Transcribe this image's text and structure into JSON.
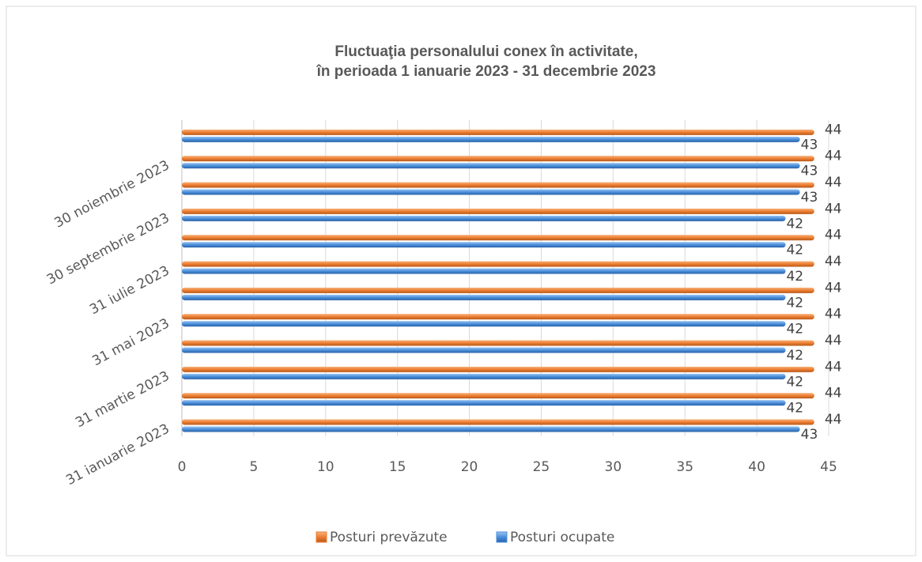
{
  "chart_data": {
    "type": "barh",
    "title": [
      "Fluctuaţia personalului conex în activitate,",
      "în perioada 1 ianuarie 2023 - 31 decembrie 2023"
    ],
    "categories": [
      "31 ianuarie 2023",
      null,
      "31 martie 2023",
      null,
      "31 mai 2023",
      null,
      "31 iulie 2023",
      null,
      "30 septembrie 2023",
      null,
      "30 noiembrie 2023",
      null
    ],
    "series": [
      {
        "name": "Posturi prevăzute",
        "color": "#ED7D31",
        "values": [
          44,
          44,
          44,
          44,
          44,
          44,
          44,
          44,
          44,
          44,
          44,
          44
        ]
      },
      {
        "name": "Posturi ocupate",
        "color": "#4A8FDB",
        "values": [
          43,
          42,
          42,
          42,
          42,
          42,
          42,
          42,
          42,
          43,
          43,
          43
        ]
      }
    ],
    "xlim": [
      0,
      45
    ],
    "xticks": [
      0,
      5,
      10,
      15,
      20,
      25,
      30,
      35,
      40,
      45
    ],
    "grid": true,
    "legend": "bottom"
  }
}
